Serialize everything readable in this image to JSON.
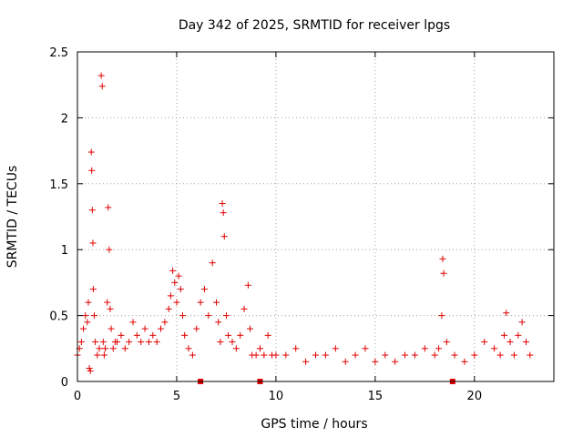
{
  "chart_data": {
    "type": "scatter",
    "title": "Day 342 of 2025, SRMTID for receiver lpgs",
    "xlabel": "GPS time / hours",
    "ylabel": "SRMTID / TECUs",
    "xlim": [
      0,
      24
    ],
    "ylim": [
      0,
      2.5
    ],
    "xticks": [
      0,
      5,
      10,
      15,
      20
    ],
    "xtick_labels": [
      "0",
      "5",
      "10",
      "15",
      "20"
    ],
    "yticks": [
      0,
      0.5,
      1,
      1.5,
      2,
      2.5
    ],
    "ytick_labels": [
      "0",
      "0.5",
      "1",
      "1.5",
      "2",
      "2.5"
    ],
    "grid": true,
    "marker": "plus",
    "color": "#e00000",
    "series": [
      {
        "name": "SRMTID",
        "x": [
          0.0,
          0.1,
          0.2,
          0.3,
          0.4,
          0.5,
          0.55,
          0.6,
          0.65,
          0.7,
          0.72,
          0.75,
          0.78,
          0.8,
          0.85,
          0.9,
          1.0,
          1.1,
          1.2,
          1.25,
          1.3,
          1.35,
          1.4,
          1.5,
          1.55,
          1.6,
          1.65,
          1.7,
          1.8,
          1.9,
          2.0,
          2.2,
          2.4,
          2.6,
          2.8,
          3.0,
          3.2,
          3.4,
          3.6,
          3.8,
          4.0,
          4.2,
          4.4,
          4.6,
          4.7,
          4.8,
          4.9,
          5.0,
          5.1,
          5.2,
          5.3,
          5.4,
          5.6,
          5.8,
          6.0,
          6.2,
          6.4,
          6.6,
          6.8,
          7.0,
          7.1,
          7.2,
          7.3,
          7.35,
          7.4,
          7.5,
          7.6,
          7.8,
          8.0,
          8.2,
          8.4,
          8.6,
          8.7,
          8.8,
          9.0,
          9.2,
          9.4,
          9.6,
          9.8,
          10.0,
          10.5,
          11.0,
          11.5,
          12.0,
          12.5,
          13.0,
          13.5,
          14.0,
          14.5,
          15.0,
          15.5,
          16.0,
          16.5,
          17.0,
          17.5,
          18.0,
          18.2,
          18.35,
          18.4,
          18.45,
          18.6,
          19.0,
          19.5,
          20.0,
          20.5,
          21.0,
          21.3,
          21.5,
          21.6,
          21.8,
          22.0,
          22.2,
          22.4,
          22.6,
          22.8
        ],
        "y": [
          0.2,
          0.25,
          0.3,
          0.4,
          0.5,
          0.45,
          0.6,
          0.1,
          0.08,
          1.74,
          1.6,
          1.3,
          1.05,
          0.7,
          0.5,
          0.3,
          0.2,
          0.25,
          2.32,
          2.24,
          0.3,
          0.2,
          0.25,
          0.6,
          1.32,
          1.0,
          0.55,
          0.4,
          0.25,
          0.3,
          0.3,
          0.35,
          0.25,
          0.3,
          0.45,
          0.35,
          0.3,
          0.4,
          0.3,
          0.35,
          0.3,
          0.4,
          0.45,
          0.55,
          0.65,
          0.84,
          0.75,
          0.6,
          0.8,
          0.7,
          0.5,
          0.35,
          0.25,
          0.2,
          0.4,
          0.6,
          0.7,
          0.5,
          0.9,
          0.6,
          0.45,
          0.3,
          1.35,
          1.28,
          1.1,
          0.5,
          0.35,
          0.3,
          0.25,
          0.35,
          0.55,
          0.73,
          0.4,
          0.2,
          0.2,
          0.25,
          0.2,
          0.35,
          0.2,
          0.2,
          0.2,
          0.25,
          0.15,
          0.2,
          0.2,
          0.25,
          0.15,
          0.2,
          0.25,
          0.15,
          0.2,
          0.15,
          0.2,
          0.2,
          0.25,
          0.2,
          0.25,
          0.5,
          0.93,
          0.82,
          0.3,
          0.2,
          0.15,
          0.2,
          0.3,
          0.25,
          0.2,
          0.35,
          0.52,
          0.3,
          0.2,
          0.35,
          0.45,
          0.3,
          0.2
        ]
      }
    ],
    "zero_markers_x": [
      6.2,
      9.2,
      18.9
    ]
  }
}
